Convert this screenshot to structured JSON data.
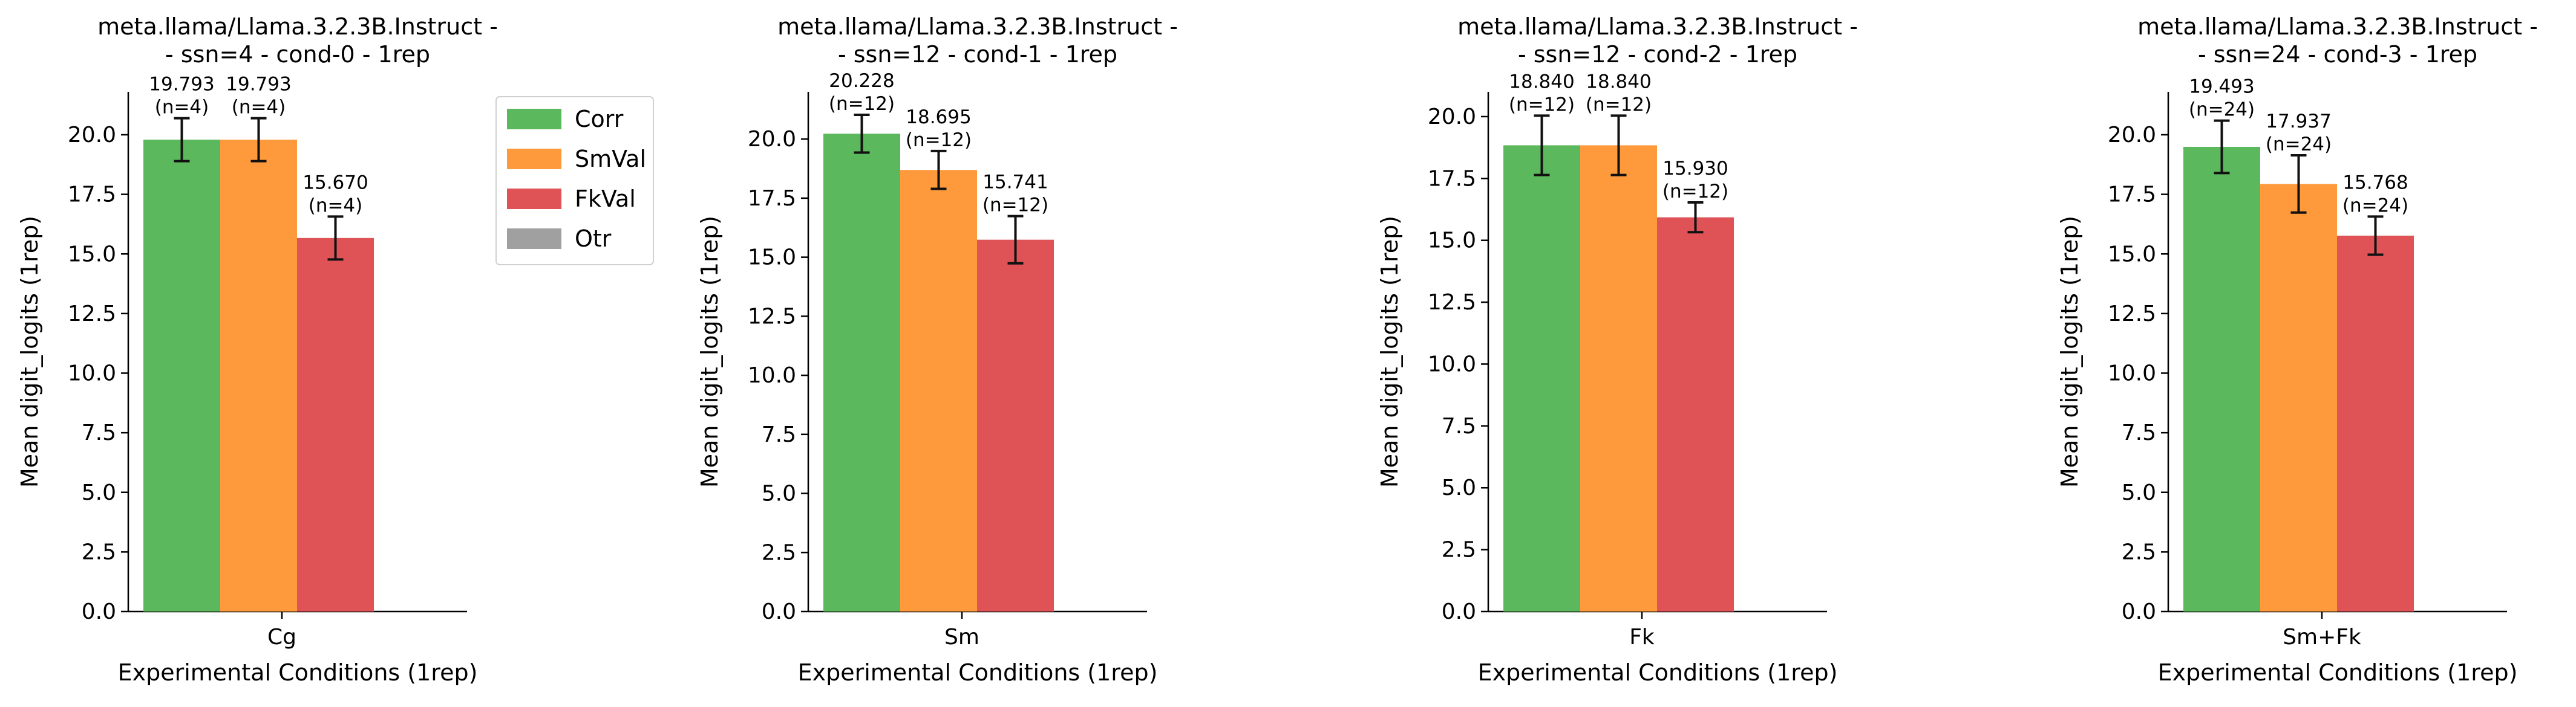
{
  "chart_data": [
    {
      "type": "bar",
      "title": "meta.llama/Llama.3.2.3B.Instruct -\n- ssn=4 - cond-0 - 1rep",
      "xlabel": "Experimental Conditions (1rep)",
      "ylabel": "Mean digit_logits (1rep)",
      "categories": [
        "Cg"
      ],
      "ylim": [
        0,
        21.8
      ],
      "yticks": [
        "0.0",
        "2.5",
        "5.0",
        "7.5",
        "10.0",
        "12.5",
        "15.0",
        "17.5",
        "20.0"
      ],
      "series": [
        {
          "name": "Corr",
          "values": [
            19.793
          ],
          "err": [
            0.9
          ],
          "labels": [
            "19.793\n(n=4)"
          ]
        },
        {
          "name": "SmVal",
          "values": [
            19.793
          ],
          "err": [
            0.9
          ],
          "labels": [
            "19.793\n(n=4)"
          ]
        },
        {
          "name": "FkVal",
          "values": [
            15.67
          ],
          "err": [
            0.9
          ],
          "labels": [
            "15.670\n(n=4)"
          ]
        },
        {
          "name": "Otr",
          "values": [
            0
          ],
          "err": [
            0
          ],
          "labels": [
            ""
          ]
        }
      ],
      "legend": {
        "position": "outside-right",
        "entries": [
          "Corr",
          "SmVal",
          "FkVal",
          "Otr"
        ]
      }
    },
    {
      "type": "bar",
      "title": "meta.llama/Llama.3.2.3B.Instruct -\n- ssn=12 - cond-1 - 1rep",
      "xlabel": "Experimental Conditions (1rep)",
      "ylabel": "Mean digit_logits (1rep)",
      "categories": [
        "Sm"
      ],
      "ylim": [
        0,
        22.0
      ],
      "yticks": [
        "0.0",
        "2.5",
        "5.0",
        "7.5",
        "10.0",
        "12.5",
        "15.0",
        "17.5",
        "20.0"
      ],
      "series": [
        {
          "name": "Corr",
          "values": [
            20.228
          ],
          "err": [
            0.8
          ],
          "labels": [
            "20.228\n(n=12)"
          ]
        },
        {
          "name": "SmVal",
          "values": [
            18.695
          ],
          "err": [
            0.8
          ],
          "labels": [
            "18.695\n(n=12)"
          ]
        },
        {
          "name": "FkVal",
          "values": [
            15.741
          ],
          "err": [
            1.0
          ],
          "labels": [
            "15.741\n(n=12)"
          ]
        },
        {
          "name": "Otr",
          "values": [
            0
          ],
          "err": [
            0
          ],
          "labels": [
            ""
          ]
        }
      ]
    },
    {
      "type": "bar",
      "title": "meta.llama/Llama.3.2.3B.Instruct -\n- ssn=12 - cond-2 - 1rep",
      "xlabel": "Experimental Conditions (1rep)",
      "ylabel": "Mean digit_logits (1rep)",
      "categories": [
        "Fk"
      ],
      "ylim": [
        0,
        21.0
      ],
      "yticks": [
        "0.0",
        "2.5",
        "5.0",
        "7.5",
        "10.0",
        "12.5",
        "15.0",
        "17.5",
        "20.0"
      ],
      "series": [
        {
          "name": "Corr",
          "values": [
            18.84
          ],
          "err": [
            1.2
          ],
          "labels": [
            "18.840\n(n=12)"
          ]
        },
        {
          "name": "SmVal",
          "values": [
            18.84
          ],
          "err": [
            1.2
          ],
          "labels": [
            "18.840\n(n=12)"
          ]
        },
        {
          "name": "FkVal",
          "values": [
            15.93
          ],
          "err": [
            0.6
          ],
          "labels": [
            "15.930\n(n=12)"
          ]
        },
        {
          "name": "Otr",
          "values": [
            0
          ],
          "err": [
            0
          ],
          "labels": [
            ""
          ]
        }
      ]
    },
    {
      "type": "bar",
      "title": "meta.llama/Llama.3.2.3B.Instruct -\n- ssn=24 - cond-3 - 1rep",
      "xlabel": "Experimental Conditions (1rep)",
      "ylabel": "Mean digit_logits (1rep)",
      "categories": [
        "Sm+Fk"
      ],
      "ylim": [
        0,
        21.8
      ],
      "yticks": [
        "0.0",
        "2.5",
        "5.0",
        "7.5",
        "10.0",
        "12.5",
        "15.0",
        "17.5",
        "20.0"
      ],
      "series": [
        {
          "name": "Corr",
          "values": [
            19.493
          ],
          "err": [
            1.1
          ],
          "labels": [
            "19.493\n(n=24)"
          ]
        },
        {
          "name": "SmVal",
          "values": [
            17.937
          ],
          "err": [
            1.2
          ],
          "labels": [
            "17.937\n(n=24)"
          ]
        },
        {
          "name": "FkVal",
          "values": [
            15.768
          ],
          "err": [
            0.8
          ],
          "labels": [
            "15.768\n(n=24)"
          ]
        },
        {
          "name": "Otr",
          "values": [
            0
          ],
          "err": [
            0
          ],
          "labels": [
            ""
          ]
        }
      ]
    }
  ],
  "colors": {
    "Corr": "#5cb85c",
    "SmVal": "#ff9a3c",
    "FkVal": "#df5356",
    "Otr": "#a0a0a0",
    "axis": "#000000"
  }
}
